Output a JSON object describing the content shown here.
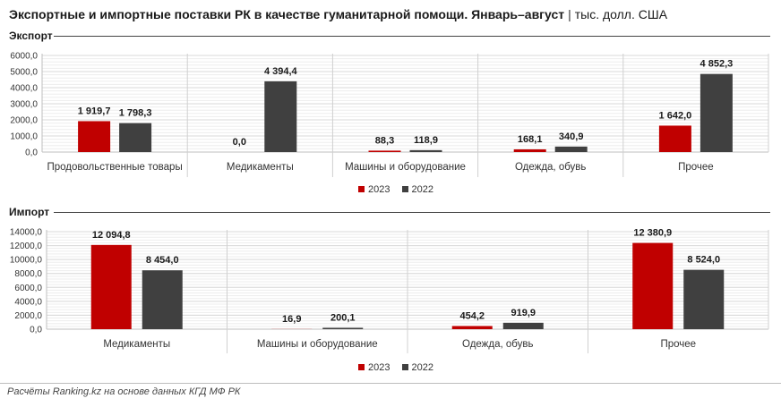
{
  "title": {
    "main": "Экспортные и импортные поставки РК в качестве гуманитарной помощи. Январь–август",
    "separator": "|",
    "unit": "тыс. долл. США"
  },
  "colors": {
    "y2023": "#c00000",
    "y2022": "#404040",
    "grid": "#d9d9d9",
    "axis": "#bfbfbf"
  },
  "sections": {
    "export_label": "Экспорт",
    "import_label": "Импорт"
  },
  "legend": {
    "s2023": "2023",
    "s2022": "2022"
  },
  "footer": "Расчёты Ranking.kz на основе данных КГД МФ РК",
  "chart_data": [
    {
      "type": "bar",
      "title": "Экспорт",
      "categories": [
        "Продовольственные товары",
        "Медикаменты",
        "Машины и оборудование",
        "Одежда, обувь",
        "Прочее"
      ],
      "series": [
        {
          "name": "2023",
          "values": [
            1919.7,
            0.0,
            88.3,
            168.1,
            1642.0
          ],
          "labels": [
            "1 919,7",
            "0,0",
            "88,3",
            "168,1",
            "1 642,0"
          ]
        },
        {
          "name": "2022",
          "values": [
            1798.3,
            4394.4,
            118.9,
            340.9,
            4852.3
          ],
          "labels": [
            "1 798,3",
            "4 394,4",
            "118,9",
            "340,9",
            "4 852,3"
          ]
        }
      ],
      "yticks": [
        "0,0",
        "1000,0",
        "2000,0",
        "3000,0",
        "4000,0",
        "5000,0",
        "6000,0"
      ],
      "ylim": [
        0,
        6000
      ],
      "grid": true,
      "legend_position": "bottom"
    },
    {
      "type": "bar",
      "title": "Импорт",
      "categories": [
        "Медикаменты",
        "Машины и оборудование",
        "Одежда, обувь",
        "Прочее"
      ],
      "series": [
        {
          "name": "2023",
          "values": [
            12094.8,
            16.9,
            454.2,
            12380.9
          ],
          "labels": [
            "12 094,8",
            "16,9",
            "454,2",
            "12 380,9"
          ]
        },
        {
          "name": "2022",
          "values": [
            8454.0,
            200.1,
            919.9,
            8524.0
          ],
          "labels": [
            "8 454,0",
            "200,1",
            "919,9",
            "8 524,0"
          ]
        }
      ],
      "yticks": [
        "0,0",
        "2000,0",
        "4000,0",
        "6000,0",
        "8000,0",
        "10000,0",
        "12000,0",
        "14000,0"
      ],
      "ylim": [
        0,
        14000
      ],
      "grid": true,
      "legend_position": "bottom"
    }
  ]
}
